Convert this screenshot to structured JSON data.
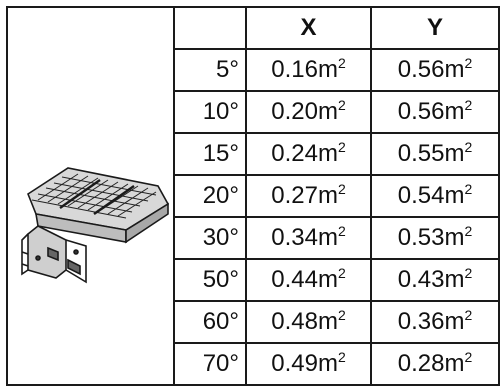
{
  "headers": {
    "angle": "",
    "x": "X",
    "y": "Y"
  },
  "unit": "m",
  "unit_power": "2",
  "rows": [
    {
      "angle": "5°",
      "x": "0.16",
      "y": "0.56"
    },
    {
      "angle": "10°",
      "x": "0.20",
      "y": "0.56"
    },
    {
      "angle": "15°",
      "x": "0.24",
      "y": "0.55"
    },
    {
      "angle": "20°",
      "x": "0.27",
      "y": "0.54"
    },
    {
      "angle": "30°",
      "x": "0.34",
      "y": "0.53"
    },
    {
      "angle": "50°",
      "x": "0.44",
      "y": "0.43"
    },
    {
      "angle": "60°",
      "x": "0.48",
      "y": "0.36"
    },
    {
      "angle": "70°",
      "x": "0.49",
      "y": "0.28"
    }
  ],
  "image": {
    "icon": "led-flood-light-fixture-icon"
  }
}
